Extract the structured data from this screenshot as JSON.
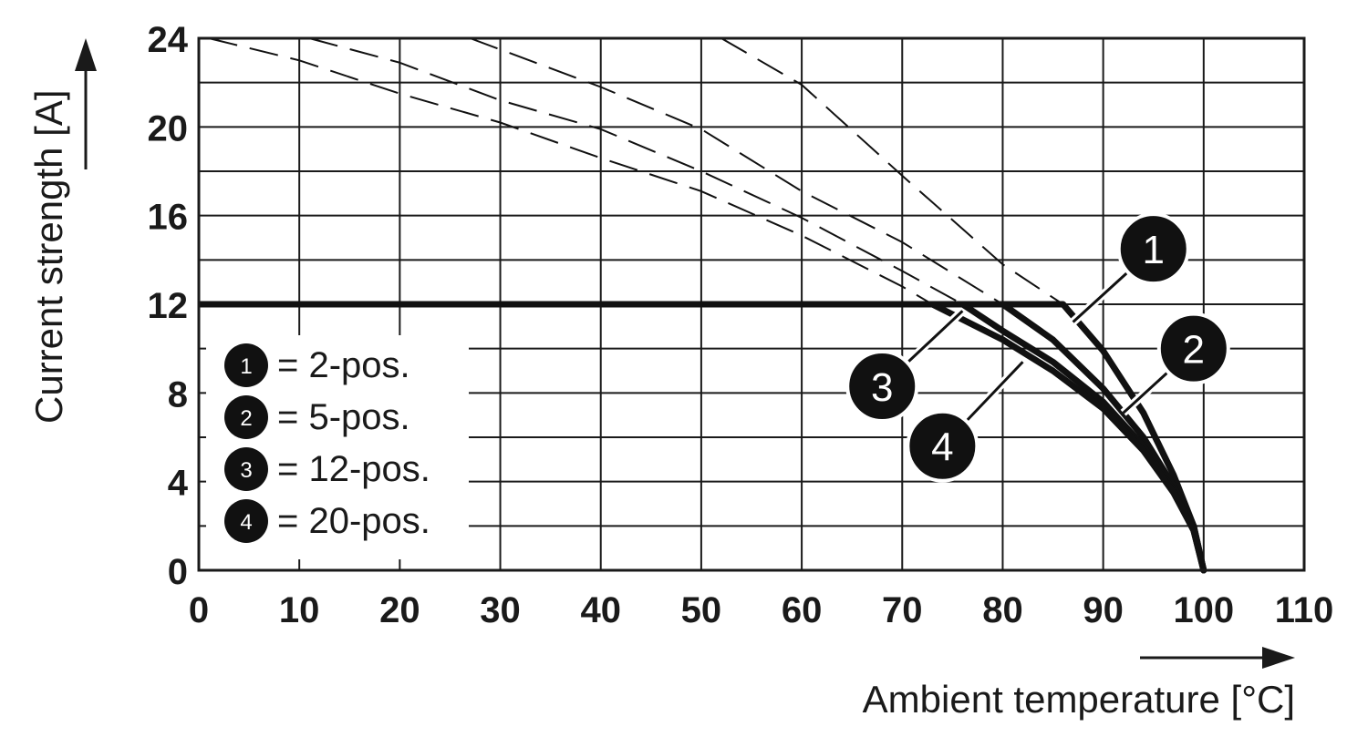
{
  "chart_data": {
    "type": "line",
    "xlabel": "Ambient temperature [°C]",
    "ylabel": "Current strength [A]",
    "xlim": [
      0,
      110
    ],
    "ylim": [
      0,
      24
    ],
    "x_ticks": [
      "0",
      "10",
      "20",
      "30",
      "40",
      "50",
      "60",
      "70",
      "80",
      "90",
      "100",
      "110"
    ],
    "y_ticks": [
      "0",
      "4",
      "8",
      "12",
      "16",
      "20",
      "24"
    ],
    "grid": true,
    "legend_position": "bottom-left",
    "rated_current_line": {
      "x": [
        0,
        86
      ],
      "y": [
        12,
        12
      ]
    },
    "series": [
      {
        "name": "2-pos.",
        "marker": "1",
        "dashed": {
          "x": [
            52,
            60,
            70,
            80,
            86
          ],
          "y": [
            24,
            21.9,
            17.8,
            13.8,
            12
          ]
        },
        "solid": {
          "x": [
            86,
            90,
            94,
            97,
            99,
            100
          ],
          "y": [
            12,
            9.9,
            7.1,
            4.3,
            2,
            0
          ]
        }
      },
      {
        "name": "5-pos.",
        "marker": "2",
        "dashed": {
          "x": [
            27,
            40,
            50,
            60,
            70,
            80
          ],
          "y": [
            24,
            21.8,
            19.9,
            17.1,
            14.8,
            12
          ]
        },
        "solid": {
          "x": [
            80,
            85,
            90,
            94,
            97,
            99,
            100
          ],
          "y": [
            12,
            10.4,
            8.2,
            6,
            3.8,
            2,
            0
          ]
        }
      },
      {
        "name": "12-pos.",
        "marker": "3",
        "dashed": {
          "x": [
            11,
            20,
            30,
            40,
            50,
            60,
            70,
            76
          ],
          "y": [
            24,
            22.9,
            21.2,
            19.9,
            18,
            15.9,
            13.5,
            12
          ]
        },
        "solid": {
          "x": [
            76,
            80,
            85,
            90,
            94,
            97,
            99,
            100
          ],
          "y": [
            12,
            10.8,
            9.4,
            7.6,
            5.6,
            3.6,
            1.8,
            0
          ]
        }
      },
      {
        "name": "20-pos.",
        "marker": "4",
        "dashed": {
          "x": [
            1,
            10,
            20,
            30,
            40,
            50,
            60,
            70,
            73
          ],
          "y": [
            24,
            23,
            21.5,
            20.2,
            18.6,
            17.1,
            15.1,
            12.8,
            12
          ]
        },
        "solid": {
          "x": [
            73,
            80,
            85,
            90,
            94,
            97,
            99,
            100
          ],
          "y": [
            12,
            10.4,
            9,
            7.3,
            5.4,
            3.5,
            1.8,
            0
          ]
        }
      }
    ],
    "legend": [
      {
        "marker": "1",
        "text": "= 2-pos."
      },
      {
        "marker": "2",
        "text": "= 5-pos."
      },
      {
        "marker": "3",
        "text": "= 12-pos."
      },
      {
        "marker": "4",
        "text": "= 20-pos."
      }
    ],
    "callouts": [
      {
        "marker": "1",
        "label_at": [
          95,
          14.5
        ],
        "points_to": [
          87,
          11.2
        ]
      },
      {
        "marker": "2",
        "label_at": [
          99,
          10
        ],
        "points_to": [
          92,
          7.1
        ]
      },
      {
        "marker": "3",
        "label_at": [
          68,
          8.3
        ],
        "points_to": [
          76,
          11.7
        ]
      },
      {
        "marker": "4",
        "label_at": [
          74,
          5.6
        ],
        "points_to": [
          82,
          9.4
        ]
      }
    ]
  }
}
